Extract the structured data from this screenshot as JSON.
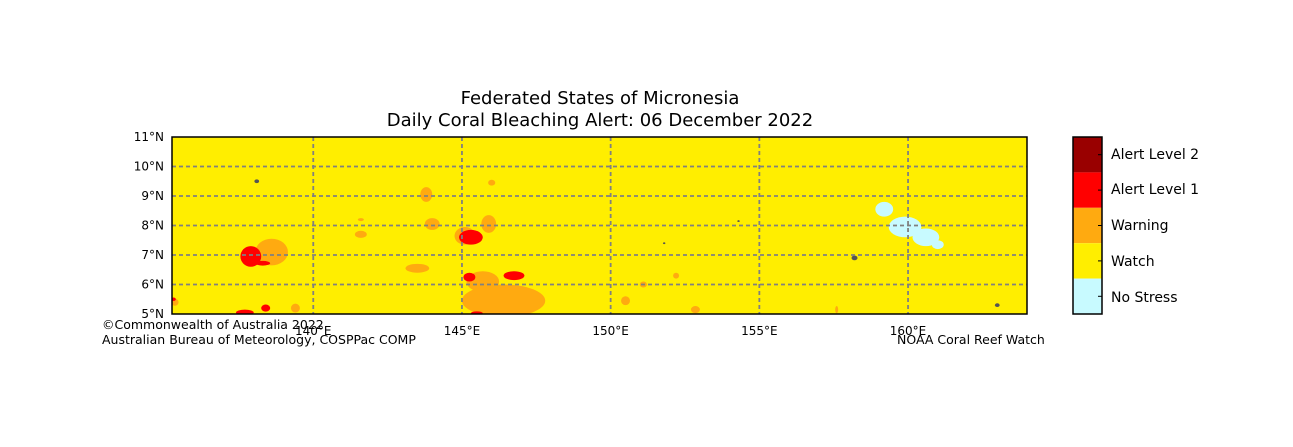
{
  "title": {
    "line1": "Federated States of Micronesia",
    "line2": "Daily Coral Bleaching Alert: 06 December 2022"
  },
  "map": {
    "lon_range": [
      135.25,
      164.0
    ],
    "lat_range": [
      5,
      11
    ],
    "lon_ticks": [
      {
        "value": 140,
        "label": "140°E"
      },
      {
        "value": 145,
        "label": "145°E"
      },
      {
        "value": 150,
        "label": "150°E"
      },
      {
        "value": 155,
        "label": "155°E"
      },
      {
        "value": 160,
        "label": "160°E"
      }
    ],
    "lat_ticks": [
      {
        "value": 5,
        "label": "5°N"
      },
      {
        "value": 6,
        "label": "6°N"
      },
      {
        "value": 7,
        "label": "7°N"
      },
      {
        "value": 8,
        "label": "8°N"
      },
      {
        "value": 9,
        "label": "9°N"
      },
      {
        "value": 10,
        "label": "10°N"
      },
      {
        "value": 11,
        "label": "11°N"
      }
    ],
    "background_level": "watch",
    "regions": [
      {
        "level": "warning",
        "lon": 138.6,
        "lat": 7.1,
        "rlon": 0.55,
        "rlat": 0.45
      },
      {
        "level": "alert1",
        "lon": 137.9,
        "lat": 6.95,
        "rlon": 0.35,
        "rlat": 0.35
      },
      {
        "level": "alert1",
        "lon": 138.3,
        "lat": 6.72,
        "rlon": 0.25,
        "rlat": 0.08
      },
      {
        "level": "alert1",
        "lon": 137.7,
        "lat": 5.05,
        "rlon": 0.3,
        "rlat": 0.1
      },
      {
        "level": "alert1",
        "lon": 138.4,
        "lat": 5.2,
        "rlon": 0.15,
        "rlat": 0.12
      },
      {
        "level": "warning",
        "lon": 139.4,
        "lat": 5.2,
        "rlon": 0.15,
        "rlat": 0.15
      },
      {
        "level": "warning",
        "lon": 135.35,
        "lat": 5.4,
        "rlon": 0.12,
        "rlat": 0.12
      },
      {
        "level": "alert1",
        "lon": 135.3,
        "lat": 5.5,
        "rlon": 0.08,
        "rlat": 0.06
      },
      {
        "level": "warning",
        "lon": 141.6,
        "lat": 7.7,
        "rlon": 0.2,
        "rlat": 0.12
      },
      {
        "level": "warning",
        "lon": 141.6,
        "lat": 8.2,
        "rlon": 0.1,
        "rlat": 0.05
      },
      {
        "level": "warning",
        "lon": 143.8,
        "lat": 9.05,
        "rlon": 0.2,
        "rlat": 0.25
      },
      {
        "level": "warning",
        "lon": 144.0,
        "lat": 8.05,
        "rlon": 0.25,
        "rlat": 0.2
      },
      {
        "level": "warning",
        "lon": 145.9,
        "lat": 8.05,
        "rlon": 0.25,
        "rlat": 0.3
      },
      {
        "level": "warning",
        "lon": 145.1,
        "lat": 7.65,
        "rlon": 0.35,
        "rlat": 0.3
      },
      {
        "level": "alert1",
        "lon": 145.3,
        "lat": 7.6,
        "rlon": 0.4,
        "rlat": 0.25
      },
      {
        "level": "warning",
        "lon": 146.0,
        "lat": 9.45,
        "rlon": 0.12,
        "rlat": 0.1
      },
      {
        "level": "warning",
        "lon": 143.5,
        "lat": 6.55,
        "rlon": 0.4,
        "rlat": 0.15
      },
      {
        "level": "warning",
        "lon": 146.4,
        "lat": 5.45,
        "rlon": 1.4,
        "rlat": 0.55
      },
      {
        "level": "warning",
        "lon": 145.7,
        "lat": 6.1,
        "rlon": 0.55,
        "rlat": 0.35
      },
      {
        "level": "alert1",
        "lon": 145.25,
        "lat": 6.25,
        "rlon": 0.2,
        "rlat": 0.15
      },
      {
        "level": "alert1",
        "lon": 146.75,
        "lat": 6.3,
        "rlon": 0.35,
        "rlat": 0.15
      },
      {
        "level": "alert1",
        "lon": 145.5,
        "lat": 5.03,
        "rlon": 0.2,
        "rlat": 0.06
      },
      {
        "level": "warning",
        "lon": 150.5,
        "lat": 5.45,
        "rlon": 0.15,
        "rlat": 0.15
      },
      {
        "level": "warning",
        "lon": 151.1,
        "lat": 6.0,
        "rlon": 0.12,
        "rlat": 0.1
      },
      {
        "level": "warning",
        "lon": 152.2,
        "lat": 6.3,
        "rlon": 0.1,
        "rlat": 0.1
      },
      {
        "level": "warning",
        "lon": 152.85,
        "lat": 5.15,
        "rlon": 0.15,
        "rlat": 0.12
      },
      {
        "level": "warning",
        "lon": 157.6,
        "lat": 5.15,
        "rlon": 0.05,
        "rlat": 0.12
      },
      {
        "level": "no_stress",
        "lon": 159.2,
        "lat": 8.55,
        "rlon": 0.3,
        "rlat": 0.25
      },
      {
        "level": "no_stress",
        "lon": 159.9,
        "lat": 7.95,
        "rlon": 0.55,
        "rlat": 0.35
      },
      {
        "level": "no_stress",
        "lon": 160.6,
        "lat": 7.6,
        "rlon": 0.45,
        "rlat": 0.3
      },
      {
        "level": "no_stress",
        "lon": 161.0,
        "lat": 7.35,
        "rlon": 0.2,
        "rlat": 0.15
      }
    ]
  },
  "islands": [
    {
      "lon": 138.1,
      "lat": 9.5,
      "r": 0.08
    },
    {
      "lon": 158.2,
      "lat": 6.9,
      "r": 0.1
    },
    {
      "lon": 163.0,
      "lat": 5.3,
      "r": 0.08
    },
    {
      "lon": 151.8,
      "lat": 7.4,
      "r": 0.04
    },
    {
      "lon": 154.3,
      "lat": 8.15,
      "r": 0.04
    }
  ],
  "legend": {
    "items": [
      {
        "label": "Alert Level 2",
        "color": "#990000"
      },
      {
        "label": "Alert Level 1",
        "color": "#ff0000"
      },
      {
        "label": "Warning",
        "color": "#ffaa10"
      },
      {
        "label": "Watch",
        "color": "#ffee00"
      },
      {
        "label": "No Stress",
        "color": "#c8faff"
      }
    ]
  },
  "colors": {
    "watch": "#ffee00",
    "warning": "#ffaa10",
    "alert1": "#ff0000",
    "alert2": "#990000",
    "no_stress": "#c8faff",
    "grid": "#808080",
    "land": "#555555"
  },
  "credits": {
    "copyright": "©Commonwealth of Australia 2022",
    "bureau": "Australian Bureau of Meteorology, COSPPac COMP",
    "noaa": "NOAA Coral Reef Watch"
  }
}
